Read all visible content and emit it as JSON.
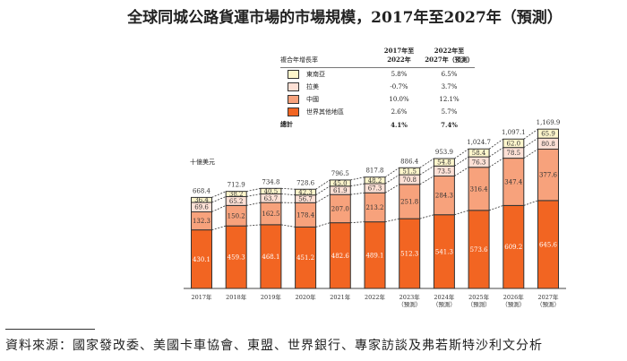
{
  "title": "全球同城公路貨運市場的市場規模，2017年至2027年（預測）",
  "legend": {
    "header": "複合年增長率",
    "col1": "2017年至\n2022年",
    "col2": "2022年至\n2027年（預測）",
    "rows": [
      {
        "label": "東南亞",
        "c1": "5.8%",
        "c2": "6.5%",
        "color": "#fef6cc"
      },
      {
        "label": "拉美",
        "c1": "-0.7%",
        "c2": "3.7%",
        "color": "#fde0d5"
      },
      {
        "label": "中國",
        "c1": "10.0%",
        "c2": "12.1%",
        "color": "#f7a27c"
      },
      {
        "label": "世界其他地區",
        "c1": "2.6%",
        "c2": "5.7%",
        "color": "#f26522"
      }
    ],
    "total": {
      "label": "總計",
      "c1": "4.1%",
      "c2": "7.4%"
    }
  },
  "chart_data": {
    "type": "bar",
    "stacked": true,
    "ylabel": "十億美元",
    "categories": [
      "2017年",
      "2018年",
      "2019年",
      "2020年",
      "2021年",
      "2022年",
      "2023年\n（預測）",
      "2024年\n（預測）",
      "2025年\n（預測）",
      "2026年\n（預測）",
      "2027年\n（預測）"
    ],
    "series": [
      {
        "name": "世界其他地區",
        "color": "#f26522",
        "values": [
          430.1,
          459.3,
          468.1,
          451.2,
          482.6,
          489.1,
          512.3,
          541.3,
          573.6,
          609.2,
          645.6
        ]
      },
      {
        "name": "中國",
        "color": "#f7a27c",
        "values": [
          132.3,
          150.2,
          162.5,
          178.4,
          207.0,
          213.2,
          251.8,
          284.3,
          316.4,
          347.4,
          377.6
        ]
      },
      {
        "name": "拉美",
        "color": "#fde0d5",
        "values": [
          69.6,
          65.2,
          63.7,
          56.7,
          61.9,
          67.3,
          70.8,
          73.5,
          76.3,
          78.5,
          80.8
        ]
      },
      {
        "name": "東南亞",
        "color": "#fef6cc",
        "values": [
          36.4,
          38.2,
          40.5,
          42.3,
          45.0,
          48.2,
          51.5,
          54.8,
          58.4,
          62.0,
          65.9
        ]
      }
    ],
    "totals": [
      "668.4",
      "712.9",
      "734.8",
      "728.6",
      "796.5",
      "817.8",
      "886.4",
      "953.9",
      "1,024.7",
      "1,097.1",
      "1,169.9"
    ]
  },
  "source": "資料來源：國家發改委、美國卡車協會、東盟、世界銀行、專家訪談及弗若斯特沙利文分析"
}
